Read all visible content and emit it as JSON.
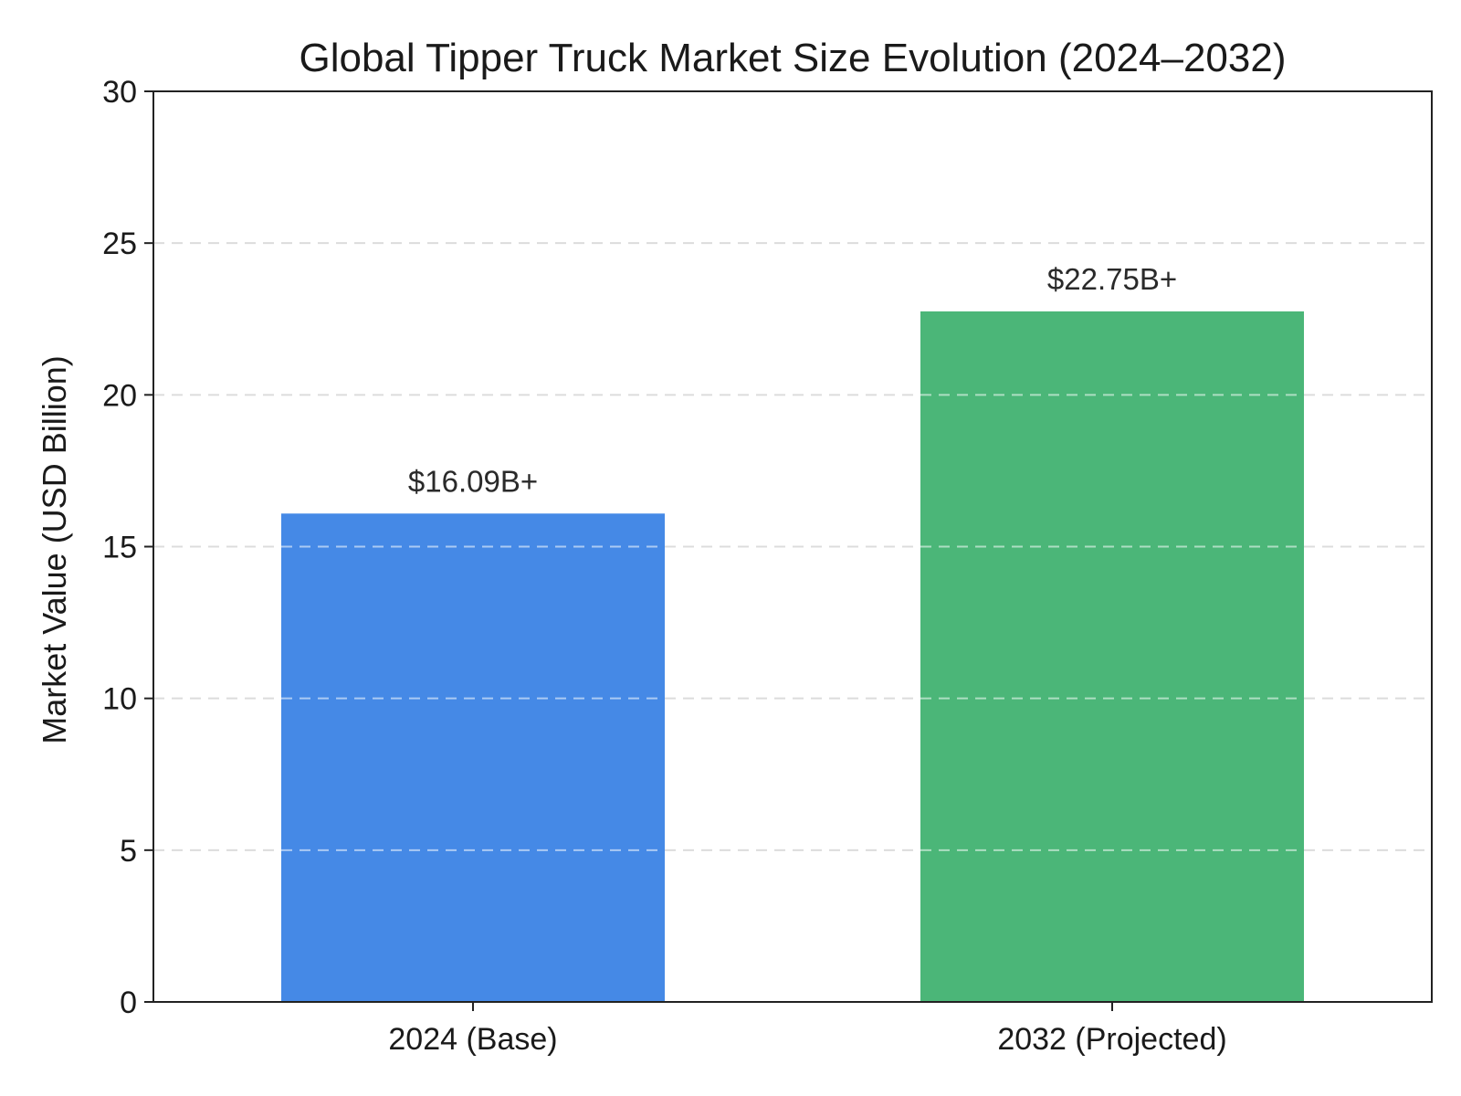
{
  "chart_data": {
    "type": "bar",
    "title": "Global Tipper Truck Market Size Evolution (2024–2032)",
    "xlabel": "",
    "ylabel": "Market Value (USD Billion)",
    "categories": [
      "2024 (Base)",
      "2032 (Projected)"
    ],
    "values": [
      16.09,
      22.75
    ],
    "data_labels": [
      "$16.09B+",
      "$22.75B+"
    ],
    "colors": [
      "#4589e6",
      "#4bb678"
    ],
    "ylim": [
      0,
      30
    ],
    "yticks": [
      0,
      5,
      10,
      15,
      20,
      25,
      30
    ],
    "grid": true
  }
}
